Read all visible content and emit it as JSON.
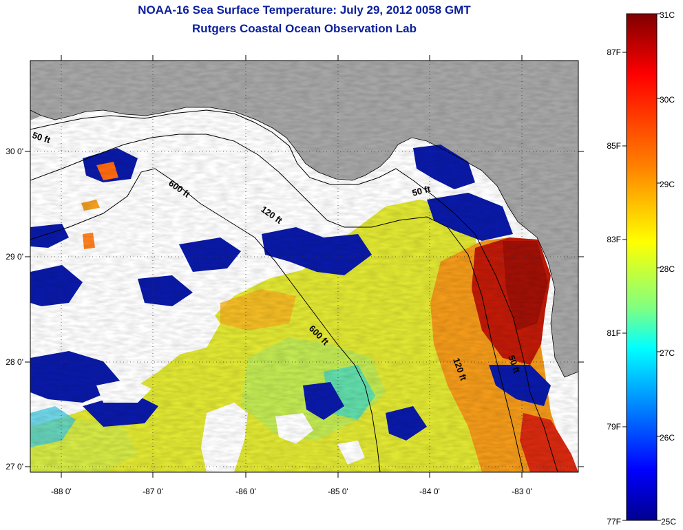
{
  "title": {
    "line1": "NOAA-16 Sea Surface Temperature:  July 29, 2012 0058 GMT",
    "line2": "Rutgers Coastal Ocean Observation Lab"
  },
  "map": {
    "lon_ticks": [
      "-88 0'",
      "-87 0'",
      "-86 0'",
      "-85 0'",
      "-84 0'",
      "-83 0'"
    ],
    "lat_ticks": [
      "30 0'",
      "29 0'",
      "28 0'",
      "27 0'"
    ],
    "contour_labels": {
      "c50_west": "50 ft",
      "c600_north": "600 ft",
      "c120_north": "120 ft",
      "c50_east": "50 ft",
      "c600_south": "600 ft",
      "c120_south": "120 ft",
      "c50_south": "50 ft"
    },
    "colors": {
      "land": "#a6a6a6",
      "cloud": "#ffffff",
      "grid": "#333333",
      "contour": "#000000"
    }
  },
  "colorbar": {
    "celsius_ticks": [
      "31C",
      "30C",
      "29C",
      "28C",
      "27C",
      "26C",
      "25C"
    ],
    "fahrenheit_ticks": [
      "87F",
      "85F",
      "83F",
      "81F",
      "79F",
      "77F"
    ],
    "gradient": [
      "#7f0000",
      "#ff0000",
      "#ff8000",
      "#ffff00",
      "#80ff80",
      "#00ffff",
      "#0080ff",
      "#0000ff",
      "#00008f"
    ]
  }
}
